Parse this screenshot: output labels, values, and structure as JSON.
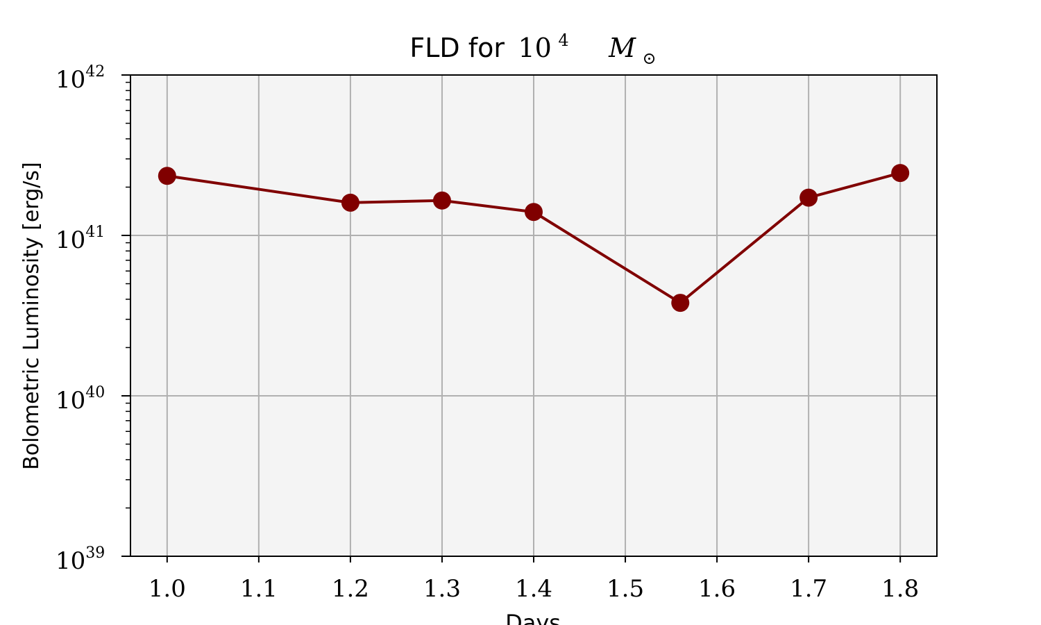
{
  "chart_data": {
    "type": "line",
    "title": {
      "text": "FLD for",
      "mass_base": "10",
      "mass_exp": "4",
      "mass_symbol": "M",
      "mass_sub": "⊙"
    },
    "xlabel": "Days",
    "ylabel": "Bolometric Luminosity [erg/s]",
    "xlim": [
      0.96,
      1.84
    ],
    "ylim": [
      1e+39,
      1e+42
    ],
    "yscale": "log",
    "grid": true,
    "x_ticks": [
      1.0,
      1.1,
      1.2,
      1.3,
      1.4,
      1.5,
      1.6,
      1.7,
      1.8
    ],
    "x_tick_labels": [
      "1.0",
      "1.1",
      "1.2",
      "1.3",
      "1.4",
      "1.5",
      "1.6",
      "1.7",
      "1.8"
    ],
    "y_ticks": [
      {
        "value": 1e+42,
        "base": "10",
        "exp": "42"
      },
      {
        "value": 1e+41,
        "base": "10",
        "exp": "41"
      },
      {
        "value": 1e+40,
        "base": "10",
        "exp": "40"
      },
      {
        "value": 1e+39,
        "base": "10",
        "exp": "39"
      }
    ],
    "series": [
      {
        "x": [
          1.0,
          1.2,
          1.3,
          1.4,
          1.56,
          1.7,
          1.8
        ],
        "y": [
          2.35e+41,
          1.6e+41,
          1.65e+41,
          1.4e+41,
          3.8e+40,
          1.72e+41,
          2.45e+41
        ]
      }
    ],
    "colors": {
      "line": "#800000",
      "plot_bg": "#f4f4f4",
      "grid": "#b0b0b0",
      "axes": "#000000"
    }
  }
}
